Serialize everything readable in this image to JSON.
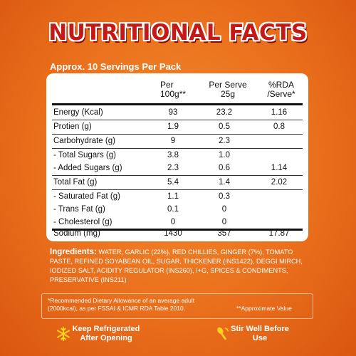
{
  "title": "NUTRITIONAL FACTS",
  "servings": "Approx. 10 Servings Per Pack",
  "table": {
    "headers": {
      "per100_line1": "Per",
      "per100_line2": "100g**",
      "serve_line1": "Per Serve",
      "serve_line2": "25g",
      "rda_line1": "%RDA",
      "rda_line2": "/Serve*"
    },
    "rows": [
      {
        "label": "Energy (Kcal)",
        "per100": "93",
        "serve": "23.2",
        "rda": "1.16"
      },
      {
        "label": "Protien (g)",
        "per100": "1.9",
        "serve": "0.5",
        "rda": "0.8"
      },
      {
        "label": "Carbohydrate (g)",
        "per100": "9",
        "serve": "2.3",
        "rda": ""
      },
      {
        "label": "- Total Sugars (g)",
        "per100": "3.8",
        "serve": "1.0",
        "rda": ""
      },
      {
        "label": "- Added Sugars (g)",
        "per100": "2.3",
        "serve": "0.6",
        "rda": "1.14"
      },
      {
        "label": "Total Fat (g)",
        "per100": "5.4",
        "serve": "1.4",
        "rda": "2.02"
      },
      {
        "label": "- Saturated Fat (g)",
        "per100": "1.1",
        "serve": "0.3",
        "rda": ""
      },
      {
        "label": "- Trans Fat (g)",
        "per100": "0.1",
        "serve": "0",
        "rda": ""
      },
      {
        "label": "- Cholesterol (g)",
        "per100": "0",
        "serve": "0",
        "rda": ""
      },
      {
        "label": "Sodium (mg)",
        "per100": "1430",
        "serve": "357",
        "rda": "17.87"
      }
    ]
  },
  "ingredients": {
    "label": "Ingredients:",
    "text": "WATER, GARLIC (22%), RED CHILLIES, GINGER (7%), TOMATO PASTE, REFINED SOYABEAN OIL, SUGAR, THICKENER (INS1422), DEGGI MIRCH, IODIZED SALT, ACIDITY REGULATOR (INS260), I+G, SPICES & CONDIMENTS, PRESERVATIVE (INS211)"
  },
  "footnote": "*Recommended Dietary Allowance of an average adult (2000kcal), as per FSSAI & ICMR RDA Table 2010.",
  "approx_note": "**Approximate Value",
  "tips": {
    "refrigerate_line1": "Keep Refrigerated",
    "refrigerate_line2": "After Opening",
    "stir_line1": "Stir Well Before",
    "stir_line2": "Use"
  },
  "colors": {
    "background": "#ea6f1c",
    "title": "#c41a17",
    "icon": "#ffd21f"
  }
}
